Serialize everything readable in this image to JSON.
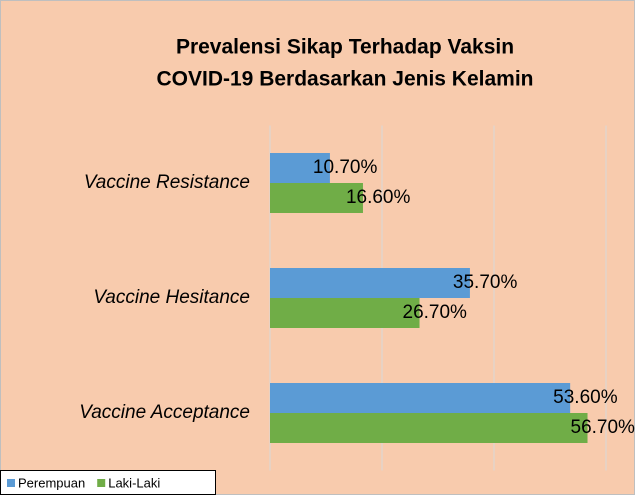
{
  "chart_data": {
    "type": "bar",
    "orientation": "horizontal",
    "title": [
      "Prevalensi Sikap Terhadap Vaksin",
      "COVID-19 Berdasarkan Jenis Kelamin"
    ],
    "categories": [
      "Vaccine Resistance",
      "Vaccine Hesitance",
      "Vaccine Acceptance"
    ],
    "series": [
      {
        "name": "Perempuan",
        "color": "#5b9bd5",
        "values": [
          10.7,
          35.7,
          53.6
        ],
        "value_labels": [
          "10.70%",
          "35.70%",
          "53.60%"
        ]
      },
      {
        "name": "Laki-Laki",
        "color": "#70ad47",
        "values": [
          16.6,
          26.7,
          56.7
        ],
        "value_labels": [
          "16.60%",
          "26.70%",
          "56.70%"
        ]
      }
    ],
    "xlim": [
      0,
      60
    ],
    "xticks": [
      0,
      20,
      40,
      60
    ],
    "grid": true,
    "legend": "bottom-left"
  }
}
